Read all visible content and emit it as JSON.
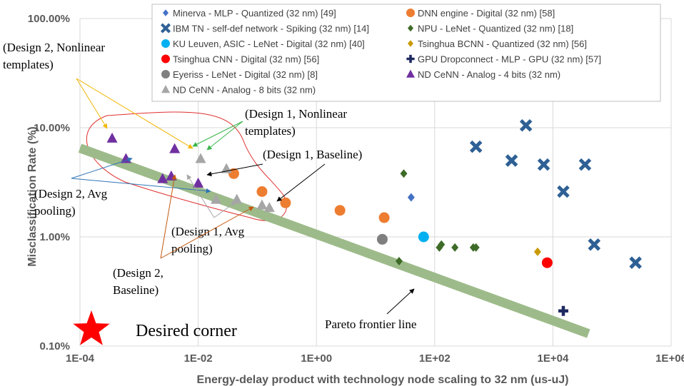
{
  "chart_data": {
    "type": "scatter",
    "x_scale": "log",
    "y_scale": "log",
    "xlim": [
      0.0001,
      1000000
    ],
    "ylim": [
      0.1,
      100
    ],
    "x_ticks": [
      "1E-04",
      "1E-02",
      "1E+00",
      "1E+02",
      "1E+04",
      "1E+06"
    ],
    "y_ticks": [
      "0.10%",
      "1.00%",
      "10.00%",
      "100.00%"
    ],
    "xlabel": "Energy-delay product with technology node scaling to 32 nm (us-uJ)",
    "ylabel": "Misclassification Rate (%)",
    "grid": true,
    "legend_position": "top-right",
    "series": [
      {
        "name": "Minerva - MLP - Quantized (32 nm) [49]",
        "marker": "diamond",
        "color": "#4472c4",
        "points": [
          {
            "x": 40,
            "y": 2.3
          }
        ]
      },
      {
        "name": "DNN engine - Digital (32 nm) [58]",
        "marker": "circle",
        "color": "#ed7d31",
        "points": [
          {
            "x": 0.04,
            "y": 3.8
          },
          {
            "x": 0.12,
            "y": 2.6
          },
          {
            "x": 0.3,
            "y": 2.05
          },
          {
            "x": 2.5,
            "y": 1.75
          },
          {
            "x": 14,
            "y": 1.5
          }
        ]
      },
      {
        "name": "IBM TN - self-def network - Spiking (32 nm) [14]",
        "marker": "x",
        "color": "#2e6095",
        "points": [
          {
            "x": 500,
            "y": 6.7
          },
          {
            "x": 2000,
            "y": 5.0
          },
          {
            "x": 3500,
            "y": 10.5
          },
          {
            "x": 7000,
            "y": 4.6
          },
          {
            "x": 15000,
            "y": 2.6
          },
          {
            "x": 35000,
            "y": 4.6
          },
          {
            "x": 50000,
            "y": 0.85
          },
          {
            "x": 250000,
            "y": 0.58
          }
        ]
      },
      {
        "name": "NPU - LeNet - Quantized (32 nm) [18]",
        "marker": "diamond",
        "color": "#3e6b28",
        "points": [
          {
            "x": 30,
            "y": 3.8
          },
          {
            "x": 25,
            "y": 0.6
          },
          {
            "x": 120,
            "y": 0.8
          },
          {
            "x": 130,
            "y": 0.85
          },
          {
            "x": 220,
            "y": 0.8
          },
          {
            "x": 450,
            "y": 0.8
          },
          {
            "x": 500,
            "y": 0.8
          }
        ]
      },
      {
        "name": "KU Leuven, ASIC - LeNet - Digital (32 nm) [40]",
        "marker": "circle",
        "color": "#00b0f0",
        "points": [
          {
            "x": 65,
            "y": 1.0
          }
        ]
      },
      {
        "name": "Tsinghua BCNN - Quantized (32 nm) [56]",
        "marker": "diamond",
        "color": "#c99a06",
        "points": [
          {
            "x": 5500,
            "y": 0.73
          }
        ]
      },
      {
        "name": "Tsinghua CNN - Digital (32 nm) [56]",
        "marker": "circle",
        "color": "#ff0000",
        "points": [
          {
            "x": 8000,
            "y": 0.58
          }
        ]
      },
      {
        "name": "GPU Dropconnect - MLP - GPU (32 nm) [57]",
        "marker": "plus",
        "color": "#1f2a60",
        "points": [
          {
            "x": 15000,
            "y": 0.21
          }
        ]
      },
      {
        "name": "Eyeriss - LeNet - Digital (32 nm) [8]",
        "marker": "circle",
        "color": "#7f7f7f",
        "points": [
          {
            "x": 13,
            "y": 0.95
          }
        ]
      },
      {
        "name": "ND CeNN - Analog - 4 bits (32 nm)",
        "marker": "triangle",
        "color": "#7030a0",
        "points": [
          {
            "x": 0.00035,
            "y": 8.0
          },
          {
            "x": 0.0006,
            "y": 5.2
          },
          {
            "x": 0.0025,
            "y": 3.4
          },
          {
            "x": 0.0035,
            "y": 3.6
          },
          {
            "x": 0.004,
            "y": 6.4
          },
          {
            "x": 0.01,
            "y": 3.1
          }
        ]
      },
      {
        "name": "ND CeNN - Analog - 8 bits (32 nm)",
        "marker": "triangle",
        "color": "#a6a6a6",
        "points": [
          {
            "x": 0.011,
            "y": 5.2
          },
          {
            "x": 0.02,
            "y": 2.2
          },
          {
            "x": 0.03,
            "y": 4.2
          },
          {
            "x": 0.045,
            "y": 2.2
          },
          {
            "x": 0.12,
            "y": 1.95
          },
          {
            "x": 0.16,
            "y": 1.85
          }
        ]
      }
    ],
    "pareto_line": {
      "label": "Pareto frontier line",
      "color": "#9dbb8a",
      "from": {
        "x": 0.0001,
        "y": 6.5
      },
      "to": {
        "x": 40000,
        "y": 0.13
      }
    },
    "desired_corner": {
      "label": "Desired corner",
      "x": 0.0001,
      "y": 0.1
    },
    "annotations": [
      {
        "lines": [
          "(Design 2, Nonlinear",
          "templates)"
        ]
      },
      {
        "lines": [
          "(Design 1, Nonlinear",
          "templates)"
        ]
      },
      {
        "lines": [
          "(Design 1, Baseline)"
        ]
      },
      {
        "lines": [
          "(Design 2, Avg",
          "pooling)"
        ]
      },
      {
        "lines": [
          "(Design 1, Avg",
          "pooling)"
        ]
      },
      {
        "lines": [
          "(Design 2,",
          "Baseline)"
        ]
      }
    ]
  }
}
